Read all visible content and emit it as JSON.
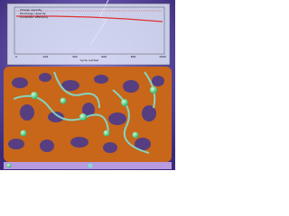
{
  "inset": {
    "legend": [
      "Charge capacity",
      "Discharge capacity",
      "Coulombic efficiency"
    ],
    "x_label": "Cycle number",
    "x_ticks": [
      "0",
      "200",
      "400",
      "600",
      "800",
      "1000"
    ]
  }
}
